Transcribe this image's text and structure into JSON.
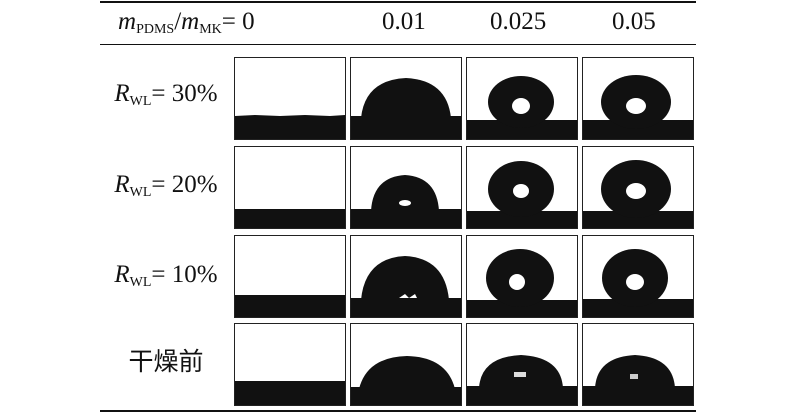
{
  "header": {
    "ratio_m1": "m",
    "ratio_sub1": "PDMS",
    "ratio_slash": "/",
    "ratio_m2": "m",
    "ratio_sub2": "MK",
    "ratio_eq": "= 0",
    "col2": "0.01",
    "col3": "0.025",
    "col4": "0.05"
  },
  "rows": [
    {
      "r": "R",
      "sub": "WL",
      "rest": "= 30%"
    },
    {
      "r": "R",
      "sub": "WL",
      "rest": "= 20%"
    },
    {
      "r": "R",
      "sub": "WL",
      "rest": "= 10%"
    },
    {
      "label": "干燥前"
    }
  ]
}
